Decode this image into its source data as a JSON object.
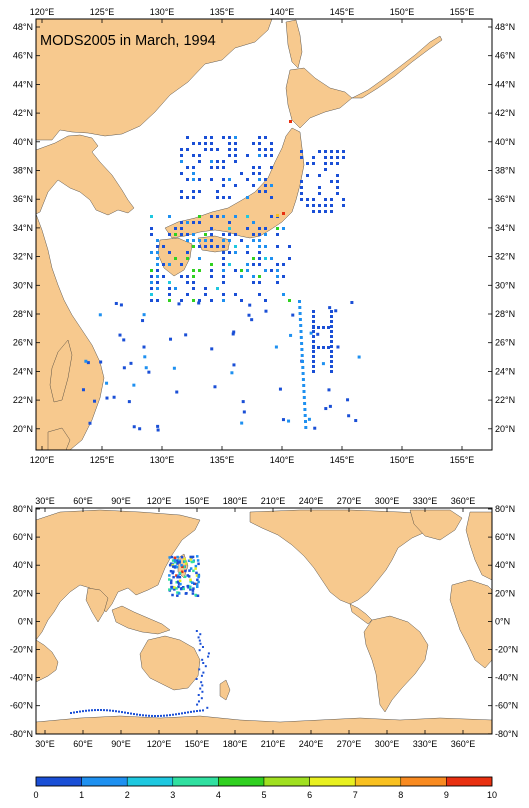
{
  "colors": {
    "land": "#f7c98e",
    "ocean": "#ffffff",
    "frame": "#000000",
    "scale": [
      "#1a4fd6",
      "#1e90f0",
      "#1ec8e0",
      "#30e0a0",
      "#30d020",
      "#a0e020",
      "#e8f020",
      "#f8c020",
      "#f88a20",
      "#e83010"
    ]
  },
  "regional_map": {
    "title": "MODS2005 in March, 1994",
    "lon_ticks_top": [
      "120°E",
      "125°E",
      "130°E",
      "135°E",
      "140°E",
      "145°E",
      "150°E",
      "155°E"
    ],
    "lon_ticks_bottom": [
      "120°E",
      "125°E",
      "130°E",
      "135°E",
      "140°E",
      "145°E",
      "150°E",
      "155°E"
    ],
    "lat_ticks_left": [
      "48°N",
      "46°N",
      "44°N",
      "42°N",
      "40°N",
      "38°N",
      "36°N",
      "34°N",
      "32°N",
      "30°N",
      "28°N",
      "26°N",
      "24°N",
      "22°N",
      "20°N"
    ],
    "lat_ticks_right": [
      "48°N",
      "46°N",
      "44°N",
      "42°N",
      "40°N",
      "38°N",
      "36°N",
      "34°N",
      "32°N",
      "30°N",
      "28°N",
      "26°N",
      "24°N",
      "22°N",
      "20°N"
    ]
  },
  "global_map": {
    "lon_ticks_top": [
      "30°E",
      "60°E",
      "90°E",
      "120°E",
      "150°E",
      "180°E",
      "210°E",
      "240°E",
      "270°E",
      "300°E",
      "330°E",
      "360°E"
    ],
    "lon_ticks_bottom": [
      "30°E",
      "60°E",
      "90°E",
      "120°E",
      "150°E",
      "180°E",
      "210°E",
      "240°E",
      "270°E",
      "300°E",
      "330°E",
      "360°E"
    ],
    "lat_ticks_left": [
      "80°N",
      "60°N",
      "40°N",
      "20°N",
      "0°N",
      "-20°N",
      "-40°N",
      "-60°N",
      "-80°N"
    ],
    "lat_ticks_right": [
      "80°N",
      "60°N",
      "40°N",
      "20°N",
      "0°N",
      "-20°N",
      "-40°N",
      "-60°N",
      "-80°N"
    ]
  },
  "colorbar": {
    "labels": [
      "0",
      "1",
      "2",
      "3",
      "4",
      "5",
      "6",
      "7",
      "8",
      "9",
      "10"
    ]
  }
}
